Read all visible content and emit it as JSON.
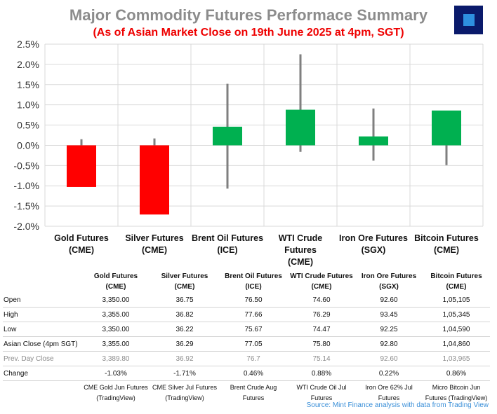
{
  "header": {
    "title": "Major Commodity Futures Performace Summary",
    "subtitle": "(As of Asian Market Close on 19th June 2025 at 4pm, SGT)"
  },
  "chart_data": {
    "type": "bar",
    "title": "Major Commodity Futures Performace Summary",
    "subtitle": "(As of Asian Market Close on 19th June 2025 at 4pm, SGT)",
    "categories": [
      {
        "line1": "Gold Futures",
        "line2": "(CME)",
        "line3": ""
      },
      {
        "line1": "Silver Futures",
        "line2": "(CME)",
        "line3": ""
      },
      {
        "line1": "Brent Oil Futures",
        "line2": "(ICE)",
        "line3": ""
      },
      {
        "line1": "WTI Crude",
        "line2": "Futures",
        "line3": "(CME)"
      },
      {
        "line1": "Iron Ore Futures",
        "line2": "(SGX)",
        "line3": ""
      },
      {
        "line1": "Bitcoin Futures",
        "line2": "(CME)",
        "line3": ""
      }
    ],
    "values": [
      -1.03,
      -1.71,
      0.46,
      0.88,
      0.22,
      0.86
    ],
    "whisker_high": [
      0.15,
      0.17,
      1.52,
      2.25,
      0.91,
      0.85
    ],
    "whisker_low": [
      0.0,
      0.0,
      -1.07,
      -0.16,
      -0.38,
      -0.49
    ],
    "ylim": [
      -2.0,
      2.5
    ],
    "yticks": [
      "2.5%",
      "2.0%",
      "1.5%",
      "1.0%",
      "0.5%",
      "0.0%",
      "-0.5%",
      "-1.0%",
      "-1.5%",
      "-2.0%"
    ],
    "xlabel": "",
    "ylabel": "",
    "grid": true,
    "colors": {
      "negative": "#ff0000",
      "positive": "#00b050",
      "whisker": "#7f7f7f",
      "grid": "#d9d9d9"
    }
  },
  "table": {
    "headers": [
      {
        "line1": "Gold Futures",
        "line2": "(CME)"
      },
      {
        "line1": "Silver Futures",
        "line2": "(CME)"
      },
      {
        "line1": "Brent Oil Futures",
        "line2": "(ICE)"
      },
      {
        "line1": "WTI Crude Futures",
        "line2": "(CME)"
      },
      {
        "line1": "Iron Ore Futures",
        "line2": "(SGX)"
      },
      {
        "line1": "Bitcoin Futures",
        "line2": "(CME)"
      }
    ],
    "rows": [
      {
        "label": "Open",
        "values": [
          "3,350.00",
          "36.75",
          "76.50",
          "74.60",
          "92.60",
          "1,05,105"
        ]
      },
      {
        "label": "High",
        "values": [
          "3,355.00",
          "36.82",
          "77.66",
          "76.29",
          "93.45",
          "1,05,345"
        ]
      },
      {
        "label": "Low",
        "values": [
          "3,350.00",
          "36.22",
          "75.67",
          "74.47",
          "92.25",
          "1,04,590"
        ]
      },
      {
        "label": "Asian Close (4pm SGT)",
        "values": [
          "3,355.00",
          "36.29",
          "77.05",
          "75.80",
          "92.80",
          "1,04,860"
        ]
      },
      {
        "label": "Prev. Day Close",
        "values": [
          "3,389.80",
          "36.92",
          "76.7",
          "75.14",
          "92.60",
          "1,03,965"
        ]
      },
      {
        "label": "Change",
        "values": [
          "-1.03%",
          "-1.71%",
          "0.46%",
          "0.88%",
          "0.22%",
          "0.86%"
        ]
      }
    ],
    "sources": [
      {
        "line1": "CME Gold Jun Futures",
        "line2": "(TradingView)"
      },
      {
        "line1": "CME Silver Jul Futures",
        "line2": "(TradingView)"
      },
      {
        "line1": "Brent Crude Aug",
        "line2": "Futures"
      },
      {
        "line1": "WTI Crude Oil Jul",
        "line2": "Futures"
      },
      {
        "line1": "Iron Ore 62% Jul",
        "line2": "Futures"
      },
      {
        "line1": "Micro Bitcoin Jun",
        "line2": "Futures (TradingView)"
      }
    ]
  },
  "footer": {
    "source": "Source: Mint Finance analysis with data from Trading View"
  },
  "logo": {
    "icon": "square-logo-icon",
    "colors": {
      "outer": "#0a1a6b",
      "inner": "#2e8fe0"
    }
  }
}
